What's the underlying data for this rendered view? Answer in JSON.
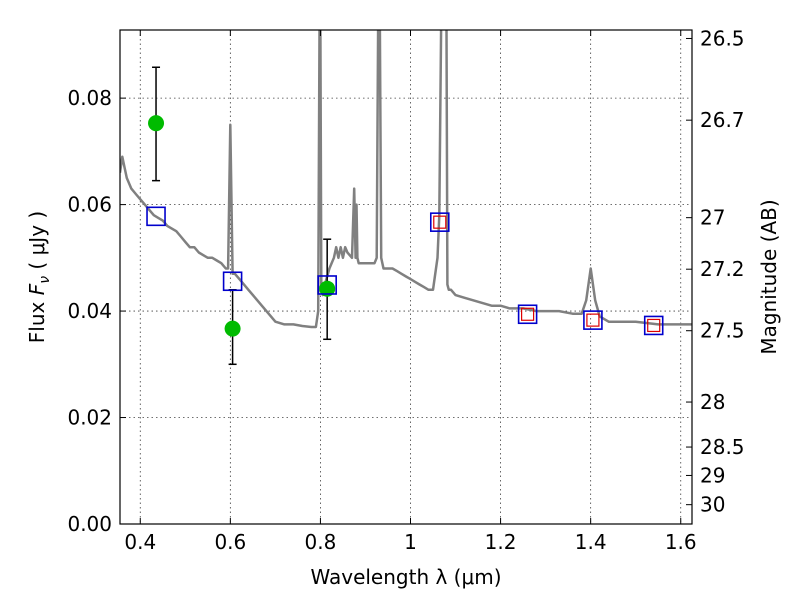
{
  "chart_data": {
    "type": "scatter",
    "xlabel": "Wavelength  λ (μm)",
    "ylabel_parts": [
      "Flux ",
      "F",
      "ν",
      "  ( μJy )"
    ],
    "y2label": "Magnitude (AB)",
    "xlim": [
      0.355,
      1.625
    ],
    "ylim": [
      0.0,
      0.0928
    ],
    "x_ticks": [
      0.4,
      0.6,
      0.8,
      1.0,
      1.2,
      1.4,
      1.6
    ],
    "x_tick_labels": [
      "0.4",
      "0.6",
      "0.8",
      "1",
      "1.2",
      "1.4",
      "1.6"
    ],
    "y_ticks": [
      0.0,
      0.02,
      0.04,
      0.06,
      0.08
    ],
    "y_tick_labels": [
      "0.00",
      "0.02",
      "0.04",
      "0.06",
      "0.08"
    ],
    "y2_ticks": [
      26.5,
      26.7,
      27,
      27.2,
      27.5,
      28,
      28.5,
      29,
      30
    ],
    "y2_tick_labels": [
      "26.5",
      "26.7",
      "27",
      "27.2",
      "27.5",
      "28",
      "28.5",
      "29",
      "30"
    ],
    "grid": true,
    "colors": {
      "model": "#808080",
      "observed": "#00bb00",
      "errorbar": "#000000",
      "model_band": "#0000cc",
      "model_band_inner": "#dd0000"
    },
    "series": [
      {
        "kind": "line",
        "x": [
          0.355,
          0.36,
          0.365,
          0.37,
          0.38,
          0.39,
          0.4,
          0.41,
          0.42,
          0.43,
          0.44,
          0.45,
          0.46,
          0.47,
          0.48,
          0.49,
          0.5,
          0.51,
          0.52,
          0.53,
          0.54,
          0.55,
          0.56,
          0.57,
          0.58,
          0.59,
          0.595,
          0.6,
          0.605,
          0.61,
          0.62,
          0.64,
          0.66,
          0.68,
          0.7,
          0.72,
          0.74,
          0.76,
          0.78,
          0.79,
          0.795,
          0.798,
          0.8,
          0.802,
          0.805,
          0.81,
          0.82,
          0.83,
          0.835,
          0.84,
          0.845,
          0.85,
          0.855,
          0.86,
          0.87,
          0.875,
          0.878,
          0.88,
          0.882,
          0.885,
          0.89,
          0.9,
          0.91,
          0.92,
          0.925,
          0.928,
          0.93,
          0.932,
          0.935,
          0.94,
          0.95,
          0.96,
          0.97,
          0.98,
          0.99,
          1.0,
          1.01,
          1.02,
          1.03,
          1.04,
          1.05,
          1.06,
          1.064,
          1.068,
          1.07,
          1.075,
          1.08,
          1.082,
          1.085,
          1.09,
          1.1,
          1.12,
          1.14,
          1.16,
          1.18,
          1.2,
          1.22,
          1.25,
          1.28,
          1.3,
          1.33,
          1.36,
          1.38,
          1.39,
          1.4,
          1.41,
          1.42,
          1.43,
          1.44,
          1.45,
          1.46,
          1.5,
          1.55,
          1.6,
          1.625
        ],
        "y": [
          0.066,
          0.069,
          0.067,
          0.065,
          0.063,
          0.062,
          0.061,
          0.06,
          0.059,
          0.058,
          0.0575,
          0.057,
          0.056,
          0.0555,
          0.055,
          0.054,
          0.053,
          0.052,
          0.052,
          0.051,
          0.0505,
          0.05,
          0.05,
          0.0495,
          0.049,
          0.048,
          0.048,
          0.075,
          0.047,
          0.047,
          0.046,
          0.044,
          0.042,
          0.04,
          0.038,
          0.0375,
          0.0375,
          0.0372,
          0.037,
          0.037,
          0.04,
          0.093,
          0.093,
          0.045,
          0.043,
          0.045,
          0.048,
          0.05,
          0.052,
          0.05,
          0.052,
          0.05,
          0.052,
          0.051,
          0.05,
          0.063,
          0.05,
          0.06,
          0.05,
          0.049,
          0.049,
          0.049,
          0.049,
          0.049,
          0.05,
          0.093,
          0.093,
          0.093,
          0.05,
          0.048,
          0.048,
          0.048,
          0.0475,
          0.047,
          0.0465,
          0.046,
          0.0455,
          0.045,
          0.0445,
          0.044,
          0.044,
          0.05,
          0.058,
          0.093,
          0.093,
          0.093,
          0.093,
          0.045,
          0.044,
          0.044,
          0.043,
          0.0425,
          0.042,
          0.0415,
          0.041,
          0.041,
          0.0405,
          0.0405,
          0.04,
          0.04,
          0.04,
          0.0395,
          0.0395,
          0.042,
          0.048,
          0.042,
          0.039,
          0.0385,
          0.038,
          0.038,
          0.038,
          0.038,
          0.0375,
          0.0375,
          0.0375
        ]
      },
      {
        "kind": "errorbar",
        "x": [
          0.435,
          0.605,
          0.815
        ],
        "y": [
          0.0753,
          0.0367,
          0.0442
        ],
        "err_low": [
          0.0108,
          0.0067,
          0.0095
        ],
        "err_high": [
          0.0105,
          0.0073,
          0.0093
        ]
      },
      {
        "kind": "squares",
        "x": [
          0.435,
          0.605,
          0.815,
          1.065,
          1.26,
          1.405,
          1.54
        ],
        "y": [
          0.0578,
          0.0456,
          0.0449,
          0.0567,
          0.0394,
          0.0383,
          0.0373
        ],
        "inner_marker": [
          false,
          false,
          false,
          true,
          true,
          true,
          true
        ]
      }
    ]
  }
}
